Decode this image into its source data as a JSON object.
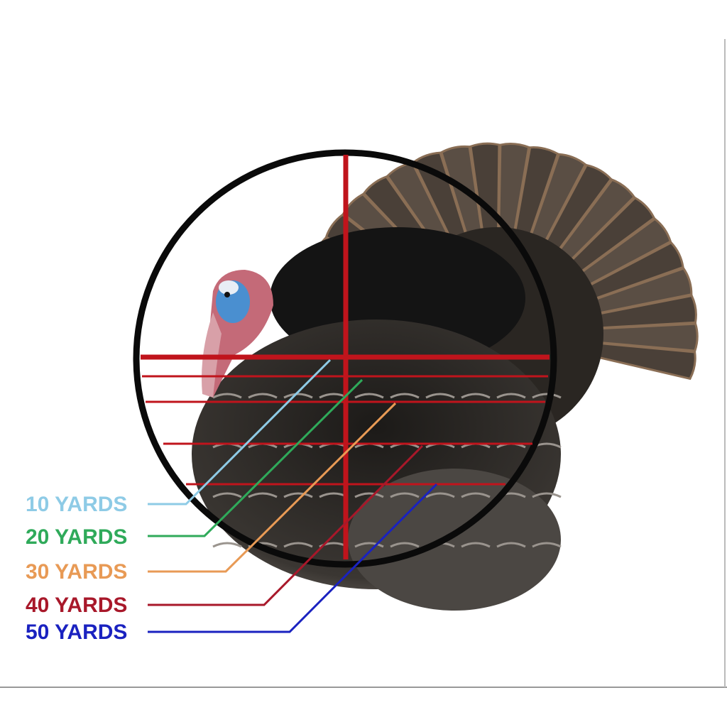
{
  "labels": [
    {
      "text": "10 YARDS",
      "color": "#8ecbe6"
    },
    {
      "text": "20 YARDS",
      "color": "#2faa5a"
    },
    {
      "text": "30 YARDS",
      "color": "#e89a55"
    },
    {
      "text": "40 YARDS",
      "color": "#a8182a"
    },
    {
      "text": "50 YARDS",
      "color": "#1a22c0"
    }
  ],
  "reticle": {
    "ring_color": "#0a0a0a",
    "crosshair_color": "#c0141c"
  },
  "illustration": "turkey"
}
